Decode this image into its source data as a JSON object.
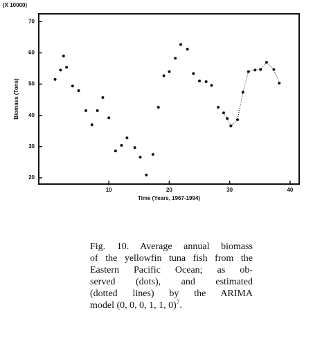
{
  "chart_data": {
    "type": "scatter",
    "y_multiplier": "(X 10000)",
    "ylabel": "Biomass (Tons)",
    "xlabel": "Time (Years, 1967-1994)",
    "xlim": [
      -1.6,
      41.5
    ],
    "xticks": [
      10,
      20,
      30,
      40
    ],
    "ylim": [
      18,
      72.5
    ],
    "yticks": [
      20,
      30,
      40,
      50,
      60,
      70
    ],
    "series": [
      {
        "style": "dots",
        "color": "#111111",
        "x": [
          1.1,
          2,
          2.5,
          3,
          4,
          5,
          6.2,
          7.2,
          8.1,
          9,
          10,
          11.1,
          12.1,
          13,
          14.3,
          15.2,
          16.2,
          17.3,
          18.2,
          19.1,
          20,
          21,
          21.9,
          23,
          24,
          25,
          26.1,
          27,
          28.1,
          29,
          29.6,
          30.2,
          31.3,
          32.2,
          33.1,
          34.2,
          35.1,
          36.1,
          37.3,
          38.2
        ],
        "values": [
          51.5,
          54.5,
          59,
          55.4,
          49.4,
          47.9,
          41.5,
          37,
          41.5,
          45.7,
          39.2,
          28.6,
          30.4,
          32.8,
          29.7,
          26.6,
          20.9,
          27.5,
          42.6,
          52.7,
          54,
          58.3,
          62.7,
          61.2,
          53.4,
          51,
          50.8,
          49.6,
          42.6,
          40.8,
          39,
          36.6,
          38.6,
          47.4,
          54,
          54.5,
          54.7,
          57,
          54.7,
          50.3
        ]
      },
      {
        "style": "dotted-line",
        "color": "#111111",
        "x": [
          29,
          29.6,
          30.2,
          31.3,
          32.2,
          33.1,
          34.2,
          35.1,
          36.1,
          37.3,
          38.2
        ],
        "values": [
          40.8,
          39,
          36.6,
          38.6,
          47.4,
          54,
          54.5,
          54.7,
          57,
          54.7,
          50.3
        ]
      }
    ]
  },
  "caption": {
    "lines": [
      "Fig. 10. Average annual biomass",
      "of the yellowfin tuna fish from the",
      "Eastern Pacific Ocean; as ob-",
      "served (dots), and estimated",
      "(dotted lines) by the ARIMA",
      "model (0, 0, 0, 1, 1, 0)"
    ],
    "reference": "7",
    "end": "."
  }
}
